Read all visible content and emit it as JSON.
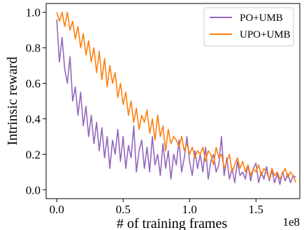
{
  "chart_data": {
    "type": "line",
    "xlabel": "# of training frames",
    "ylabel": "Intrinsic reward",
    "x_offset_label": "1e8",
    "xlim": [
      -0.08,
      1.83
    ],
    "ylim": [
      -0.05,
      1.05
    ],
    "xticks": [
      0.0,
      0.5,
      1.0,
      1.5
    ],
    "xtick_labels": [
      "0.0",
      "0.5",
      "1.0",
      "1.5"
    ],
    "yticks": [
      0.0,
      0.2,
      0.4,
      0.6,
      0.8,
      1.0
    ],
    "ytick_labels": [
      "0.0",
      "0.2",
      "0.4",
      "0.6",
      "0.8",
      "1.0"
    ],
    "grid": false,
    "legend_position": "top-right",
    "series": [
      {
        "name": "PO+UMB",
        "color": "#9467bd",
        "x": [
          0.0,
          0.02,
          0.04,
          0.06,
          0.08,
          0.1,
          0.12,
          0.14,
          0.16,
          0.18,
          0.2,
          0.22,
          0.24,
          0.26,
          0.28,
          0.3,
          0.32,
          0.34,
          0.36,
          0.38,
          0.4,
          0.42,
          0.44,
          0.46,
          0.48,
          0.5,
          0.52,
          0.54,
          0.56,
          0.58,
          0.6,
          0.62,
          0.64,
          0.66,
          0.68,
          0.7,
          0.72,
          0.74,
          0.76,
          0.78,
          0.8,
          0.82,
          0.84,
          0.86,
          0.88,
          0.9,
          0.92,
          0.94,
          0.96,
          0.98,
          1.0,
          1.02,
          1.04,
          1.06,
          1.08,
          1.1,
          1.12,
          1.14,
          1.16,
          1.18,
          1.2,
          1.22,
          1.24,
          1.26,
          1.28,
          1.3,
          1.32,
          1.34,
          1.36,
          1.38,
          1.4,
          1.42,
          1.44,
          1.46,
          1.48,
          1.5,
          1.52,
          1.54,
          1.56,
          1.58,
          1.6,
          1.62,
          1.64,
          1.66,
          1.68,
          1.7,
          1.72,
          1.74,
          1.76,
          1.78,
          1.8
        ],
        "values": [
          0.96,
          0.72,
          0.86,
          0.68,
          0.6,
          0.75,
          0.5,
          0.58,
          0.42,
          0.55,
          0.36,
          0.47,
          0.3,
          0.42,
          0.26,
          0.38,
          0.22,
          0.35,
          0.18,
          0.3,
          0.12,
          0.28,
          0.2,
          0.34,
          0.16,
          0.3,
          0.12,
          0.25,
          0.18,
          0.36,
          0.1,
          0.22,
          0.28,
          0.12,
          0.24,
          0.1,
          0.3,
          0.14,
          0.2,
          0.08,
          0.26,
          0.12,
          0.22,
          0.06,
          0.2,
          0.14,
          0.28,
          0.1,
          0.18,
          0.3,
          0.16,
          0.08,
          0.22,
          0.12,
          0.2,
          0.1,
          0.24,
          0.06,
          0.16,
          0.2,
          0.1,
          0.14,
          0.3,
          0.08,
          0.18,
          0.06,
          0.12,
          0.04,
          0.16,
          0.08,
          0.1,
          0.06,
          0.14,
          0.05,
          0.12,
          0.15,
          0.04,
          0.1,
          0.06,
          0.13,
          0.05,
          0.11,
          0.04,
          0.09,
          0.03,
          0.1,
          0.05,
          0.09,
          0.04,
          0.08,
          0.07
        ]
      },
      {
        "name": "UPO+UMB",
        "color": "#ff7f0e",
        "x": [
          0.0,
          0.02,
          0.04,
          0.06,
          0.08,
          0.1,
          0.12,
          0.14,
          0.16,
          0.18,
          0.2,
          0.22,
          0.24,
          0.26,
          0.28,
          0.3,
          0.32,
          0.34,
          0.36,
          0.38,
          0.4,
          0.42,
          0.44,
          0.46,
          0.48,
          0.5,
          0.52,
          0.54,
          0.56,
          0.58,
          0.6,
          0.62,
          0.64,
          0.66,
          0.68,
          0.7,
          0.72,
          0.74,
          0.76,
          0.78,
          0.8,
          0.82,
          0.84,
          0.86,
          0.88,
          0.9,
          0.92,
          0.94,
          0.96,
          0.98,
          1.0,
          1.02,
          1.04,
          1.06,
          1.08,
          1.1,
          1.12,
          1.14,
          1.16,
          1.18,
          1.2,
          1.22,
          1.24,
          1.26,
          1.28,
          1.3,
          1.32,
          1.34,
          1.36,
          1.38,
          1.4,
          1.42,
          1.44,
          1.46,
          1.48,
          1.5,
          1.52,
          1.54,
          1.56,
          1.58,
          1.6,
          1.62,
          1.64,
          1.66,
          1.68,
          1.7,
          1.72,
          1.74,
          1.76,
          1.78,
          1.8
        ],
        "values": [
          1.0,
          0.95,
          1.0,
          0.92,
          1.0,
          0.9,
          0.95,
          0.85,
          0.92,
          0.8,
          0.88,
          0.76,
          0.84,
          0.72,
          0.8,
          0.66,
          0.78,
          0.62,
          0.74,
          0.58,
          0.7,
          0.6,
          0.66,
          0.52,
          0.6,
          0.48,
          0.55,
          0.42,
          0.5,
          0.38,
          0.46,
          0.34,
          0.42,
          0.38,
          0.45,
          0.32,
          0.4,
          0.28,
          0.42,
          0.3,
          0.36,
          0.22,
          0.34,
          0.26,
          0.3,
          0.28,
          0.24,
          0.3,
          0.22,
          0.26,
          0.2,
          0.24,
          0.18,
          0.22,
          0.2,
          0.24,
          0.16,
          0.22,
          0.2,
          0.14,
          0.24,
          0.18,
          0.2,
          0.12,
          0.16,
          0.2,
          0.1,
          0.14,
          0.18,
          0.12,
          0.16,
          0.1,
          0.14,
          0.08,
          0.12,
          0.1,
          0.14,
          0.08,
          0.12,
          0.1,
          0.06,
          0.12,
          0.08,
          0.1,
          0.06,
          0.09,
          0.12,
          0.07,
          0.1,
          0.08,
          0.04
        ]
      }
    ]
  }
}
